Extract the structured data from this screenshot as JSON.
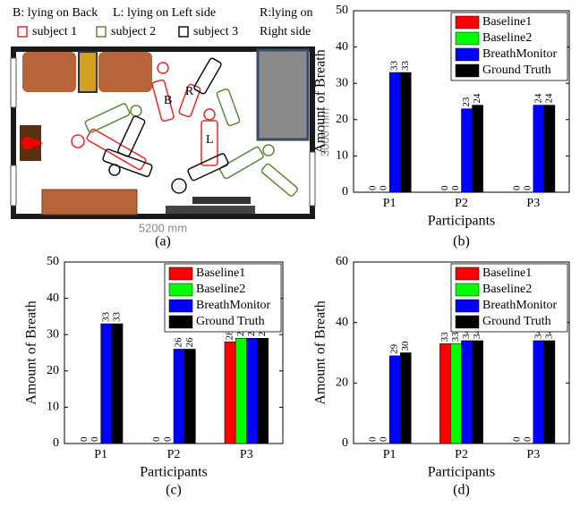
{
  "floor_plan": {
    "legend": [
      "B: lying on Back",
      "L: lying on Left side",
      "R:lying on",
      "Right side"
    ],
    "subjects": [
      {
        "name": "subject 1",
        "color": "#e8282b"
      },
      {
        "name": "subject 2",
        "color": "#5a8a3a"
      },
      {
        "name": "subject 3",
        "color": "#111111"
      }
    ],
    "letters": [
      "B",
      "L",
      "R"
    ],
    "width_label": "5200 mm",
    "height_label": "3000 mm",
    "caption": "(a)"
  },
  "chart_data": [
    {
      "type": "bar",
      "caption": "(b)",
      "xlabel": "Participants",
      "ylabel": "Amount of Breath",
      "categories": [
        "P1",
        "P2",
        "P3"
      ],
      "ylim": [
        0,
        50
      ],
      "yticks": [
        0,
        10,
        20,
        30,
        40,
        50
      ],
      "grid": false,
      "legend": "northeast",
      "series": [
        {
          "name": "Baseline1",
          "color": "#ff0000",
          "values": [
            0,
            0,
            0
          ]
        },
        {
          "name": "Baseline2",
          "color": "#00ff00",
          "values": [
            0,
            0,
            0
          ]
        },
        {
          "name": "BreathMonitor",
          "color": "#0000ff",
          "values": [
            33,
            23,
            24
          ]
        },
        {
          "name": "Ground Truth",
          "color": "#000000",
          "values": [
            33,
            24,
            24
          ]
        }
      ]
    },
    {
      "type": "bar",
      "caption": "(c)",
      "xlabel": "Participants",
      "ylabel": "Amount of Breath",
      "categories": [
        "P1",
        "P2",
        "P3"
      ],
      "ylim": [
        0,
        50
      ],
      "yticks": [
        0,
        10,
        20,
        30,
        40,
        50
      ],
      "grid": false,
      "legend": "northeast",
      "series": [
        {
          "name": "Baseline1",
          "color": "#ff0000",
          "values": [
            0,
            0,
            28
          ]
        },
        {
          "name": "Baseline2",
          "color": "#00ff00",
          "values": [
            0,
            0,
            29
          ]
        },
        {
          "name": "BreathMonitor",
          "color": "#0000ff",
          "values": [
            33,
            26,
            29
          ]
        },
        {
          "name": "Ground Truth",
          "color": "#000000",
          "values": [
            33,
            26,
            29
          ]
        }
      ]
    },
    {
      "type": "bar",
      "caption": "(d)",
      "xlabel": "Participants",
      "ylabel": "Amount of Breath",
      "categories": [
        "P1",
        "P2",
        "P3"
      ],
      "ylim": [
        0,
        60
      ],
      "yticks": [
        0,
        20,
        40,
        60
      ],
      "grid": false,
      "legend": "northeast",
      "series": [
        {
          "name": "Baseline1",
          "color": "#ff0000",
          "values": [
            0,
            33,
            0
          ]
        },
        {
          "name": "Baseline2",
          "color": "#00ff00",
          "values": [
            0,
            33,
            0
          ]
        },
        {
          "name": "BreathMonitor",
          "color": "#0000ff",
          "values": [
            29,
            34,
            34
          ]
        },
        {
          "name": "Ground Truth",
          "color": "#000000",
          "values": [
            30,
            34,
            34
          ]
        }
      ]
    }
  ]
}
